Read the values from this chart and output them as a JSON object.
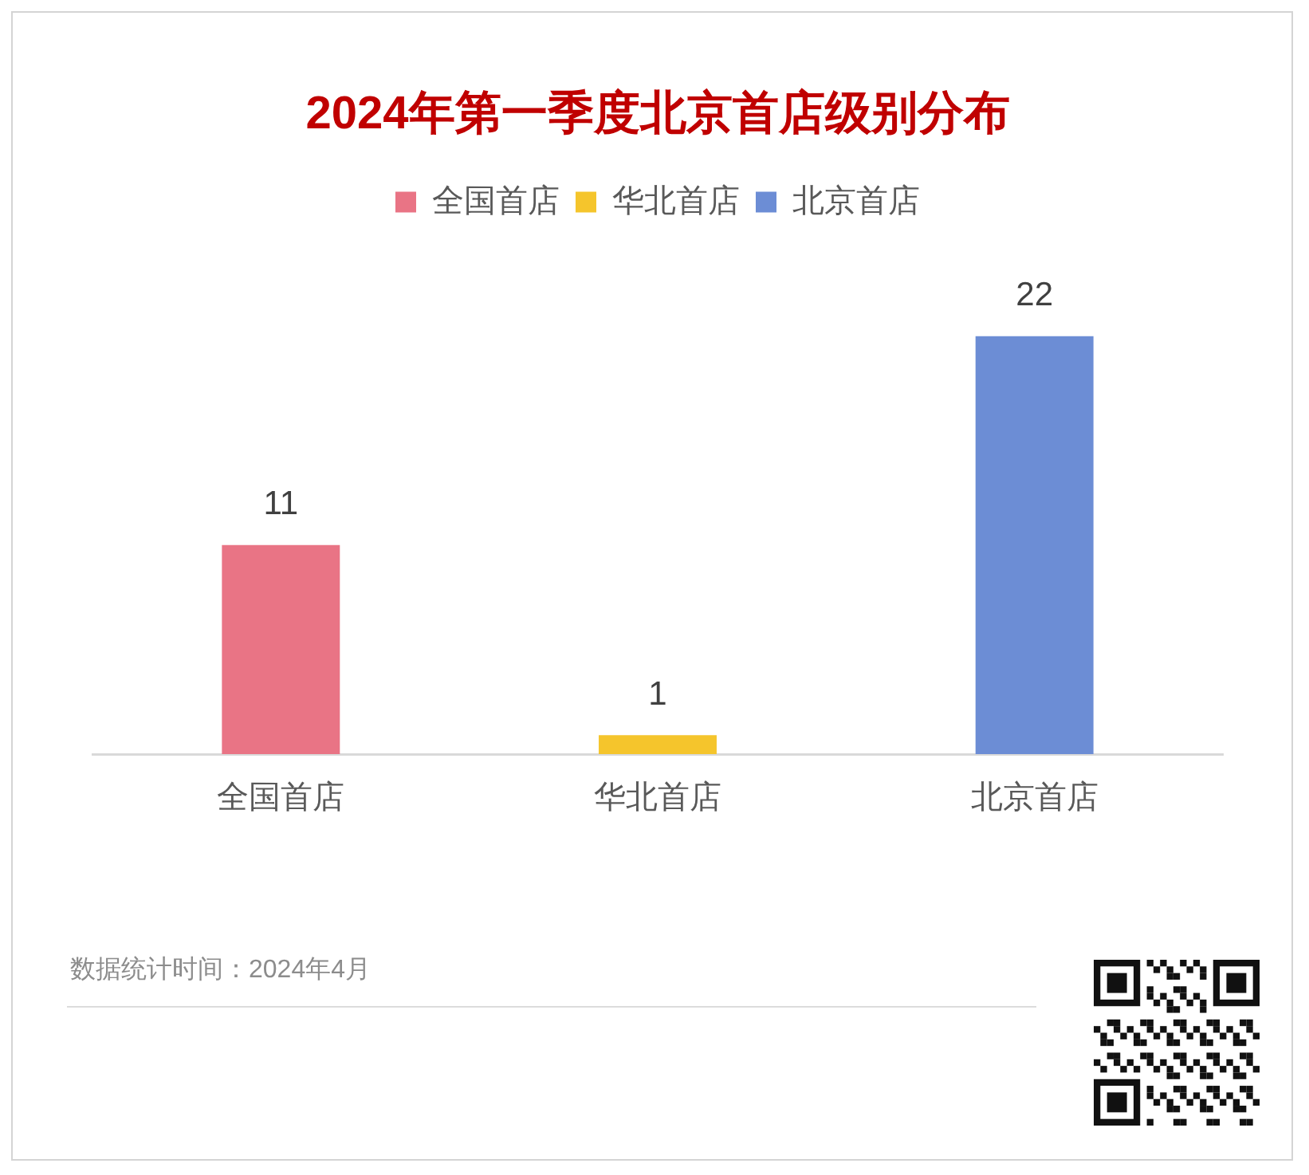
{
  "chart_data": {
    "type": "bar",
    "title": "2024年第一季度北京首店级别分布",
    "categories": [
      "全国首店",
      "华北首店",
      "北京首店"
    ],
    "series": [
      {
        "name": "全国首店",
        "color": "#e97485",
        "values": [
          11,
          null,
          null
        ]
      },
      {
        "name": "华北首店",
        "color": "#f5c52c",
        "values": [
          null,
          1,
          null
        ]
      },
      {
        "name": "北京首店",
        "color": "#6c8dd5",
        "values": [
          null,
          null,
          22
        ]
      }
    ],
    "data_labels": true,
    "legend": "top",
    "annotations": [
      "数据统计时间：2024年4月"
    ]
  }
}
